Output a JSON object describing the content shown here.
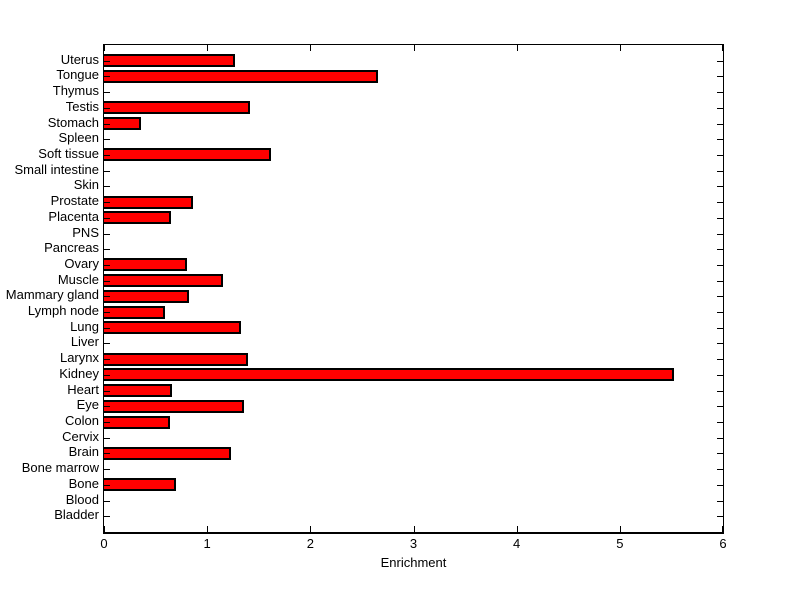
{
  "figure": {
    "background": "#ffffff",
    "axis_color": "#000000",
    "text_color": "#000000"
  },
  "chart_data": {
    "type": "bar",
    "orientation": "horizontal",
    "title": "",
    "xlabel": "Enrichment",
    "ylabel": "",
    "xlim": [
      0,
      6
    ],
    "x_ticks": [
      0,
      1,
      2,
      3,
      4,
      5,
      6
    ],
    "grid": false,
    "legend": null,
    "bar_color": "#ff0000",
    "bar_edge_color": "#000000",
    "categories": [
      "Uterus",
      "Tongue",
      "Thymus",
      "Testis",
      "Stomach",
      "Spleen",
      "Soft tissue",
      "Small intestine",
      "Skin",
      "Prostate",
      "Placenta",
      "PNS",
      "Pancreas",
      "Ovary",
      "Muscle",
      "Mammary gland",
      "Lymph node",
      "Lung",
      "Liver",
      "Larynx",
      "Kidney",
      "Heart",
      "Eye",
      "Colon",
      "Cervix",
      "Brain",
      "Bone marrow",
      "Bone",
      "Blood",
      "Bladder"
    ],
    "values": [
      1.27,
      2.66,
      0,
      1.41,
      0.36,
      0,
      1.62,
      0,
      0,
      0.86,
      0.65,
      0,
      0,
      0.8,
      1.15,
      0.82,
      0.59,
      1.33,
      0,
      1.4,
      5.52,
      0.66,
      1.36,
      0.64,
      0,
      1.23,
      0,
      0.7,
      0,
      0
    ]
  }
}
